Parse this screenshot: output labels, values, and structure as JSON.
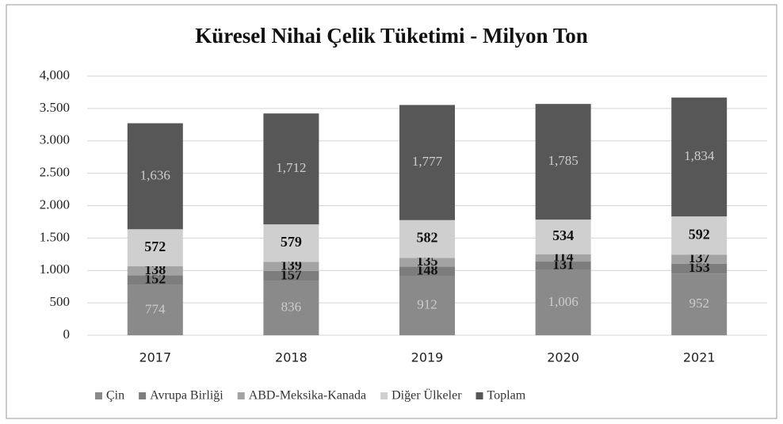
{
  "chart_data": {
    "type": "stacked_bar",
    "title": "Küresel Nihai Çelik Tüketimi - Milyon  Ton",
    "categories": [
      "2017",
      "2018",
      "2019",
      "2020",
      "2021"
    ],
    "series": [
      {
        "name": "Çin",
        "color": "#8a8a8a",
        "values": [
          774,
          836,
          912,
          1006,
          952
        ],
        "value_labels": [
          "774",
          "836",
          "912",
          "1,006",
          "952"
        ]
      },
      {
        "name": "Avrupa Birliği",
        "color": "#7d7d7d",
        "values": [
          152,
          157,
          148,
          131,
          153
        ]
      },
      {
        "name": "ABD-Meksika-Kanada",
        "color": "#a3a3a3",
        "values": [
          138,
          139,
          135,
          114,
          137
        ]
      },
      {
        "name": "Diğer Ülkeler",
        "color": "#cfcfcf",
        "values": [
          572,
          579,
          582,
          534,
          592
        ]
      },
      {
        "name": "Toplam",
        "color": "#575757",
        "values": [
          1636,
          1712,
          1777,
          1785,
          1834
        ],
        "value_labels": [
          "1,636",
          "1,712",
          "1,777",
          "1,785",
          "1,834"
        ]
      }
    ],
    "ylim": [
      0,
      4000
    ],
    "yticks": [
      0,
      500,
      {
        "value": 1000,
        "label": "1.000"
      },
      {
        "value": 1500,
        "label": "1.500"
      },
      {
        "value": 2000,
        "label": "2.000"
      },
      {
        "value": 2500,
        "label": "2.500"
      },
      {
        "value": 3000,
        "label": "3.000"
      },
      {
        "value": 3500,
        "label": "3.500"
      },
      {
        "value": 4000,
        "label": "4,000"
      }
    ],
    "grid": true
  }
}
